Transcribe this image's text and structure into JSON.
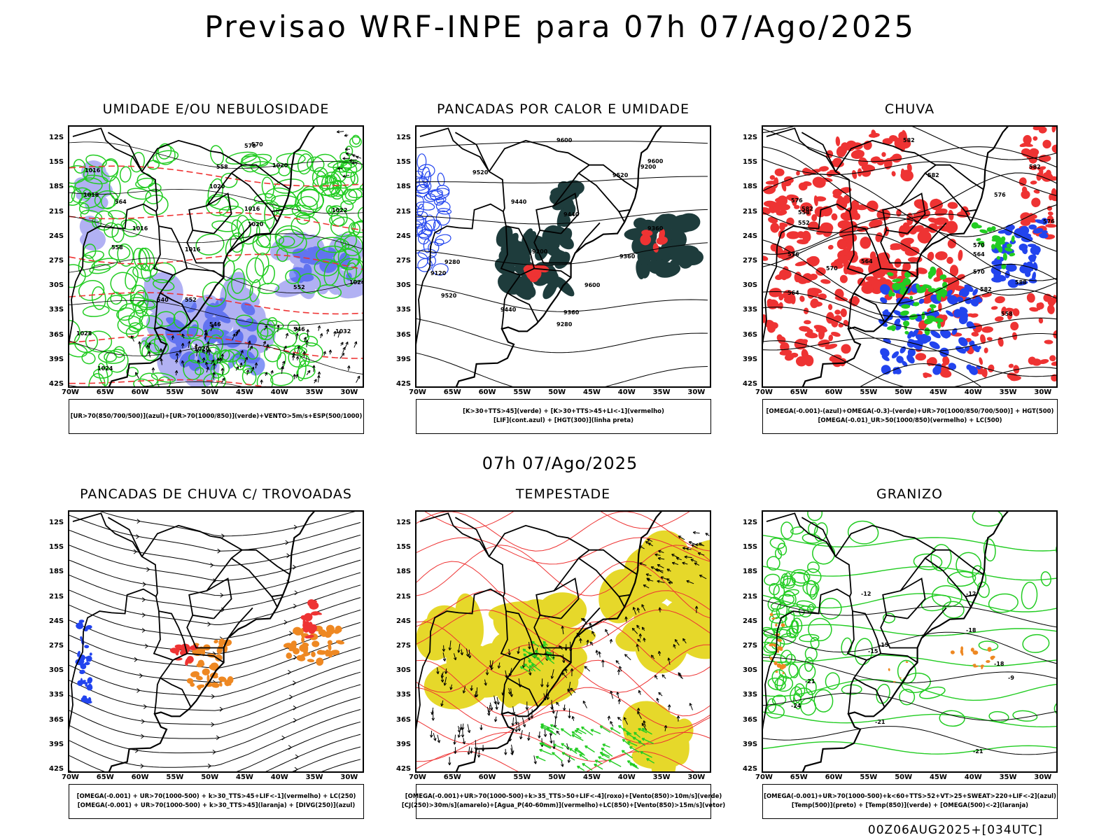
{
  "header": {
    "title": "Previsao WRF-INPE  para 07h 07/Ago/2025"
  },
  "mid_title": "07h 07/Ago/2025",
  "footer": {
    "stamp": "00Z06AUG2025+[034UTC]"
  },
  "axes": {
    "lat_ticks": [
      "12S",
      "15S",
      "18S",
      "21S",
      "24S",
      "27S",
      "30S",
      "33S",
      "36S",
      "39S",
      "42S"
    ],
    "lon_ticks": [
      "70W",
      "65W",
      "60W",
      "55W",
      "50W",
      "45W",
      "40W",
      "35W",
      "30W"
    ]
  },
  "colors": {
    "green": "#22cc22",
    "red": "#ee3333",
    "blue": "#2244ee",
    "lightblue": "#8888ee",
    "darkteal": "#1e3c3c",
    "orange": "#ee8822",
    "yellow": "#e6d82a",
    "black": "#000000"
  },
  "panels": [
    {
      "title": "UMIDADE E/OU NEBULOSIDADE",
      "legend": [
        "[UR>70(850/700/500)](azul)+[UR>70(1000/850)](verde)+VENTO>5m/s+ESP(500/1000)"
      ],
      "contour_labels": [
        "1016",
        "1020",
        "1016",
        "1016",
        "1020",
        "1024",
        "1028",
        "1032",
        "1024",
        "1020",
        "1018",
        "1016",
        "1020",
        "1022",
        "1024",
        "570",
        "564",
        "558",
        "552",
        "546",
        "540",
        "546",
        "552",
        "570",
        "558"
      ]
    },
    {
      "title": "PANCADAS POR CALOR E UMIDADE",
      "legend": [
        "[K>30+TTS>45](verde) + [K>30+TTS>45+LI<-1](vermelho)",
        "[LIF](cont.azul) + [HGT(300)](linha preta)"
      ],
      "contour_labels": [
        "9600",
        "9600",
        "9520",
        "9520",
        "9440",
        "9440",
        "9360",
        "9360",
        "9280",
        "9200",
        "9120",
        "9600",
        "9520",
        "9440",
        "9360",
        "9280",
        "9200"
      ]
    },
    {
      "title": "CHUVA",
      "legend": [
        "[OMEGA(-0.001)-(azul)+OMEGA(-0.3)-(verde)+UR>70(1000/850/700/500)] + HGT(500)",
        "[OMEGA(-0.01)_UR>50(1000/850)(vermelho) + LC(500)"
      ],
      "contour_labels": [
        "582",
        "582",
        "576",
        "576",
        "570",
        "576",
        "582",
        "570",
        "564",
        "564",
        "558",
        "552",
        "558",
        "564",
        "570",
        "576",
        "582",
        "588",
        "582"
      ]
    },
    {
      "title": "PANCADAS DE CHUVA C/ TROVOADAS",
      "legend": [
        "[OMEGA(-0.001) + UR>70(1000-500) + k>30_TTS>45+LIF<-1](vermelho) + LC(250)",
        "[OMEGA(-0.001) + UR>70(1000-500) + k>30_TTS>45](laranja) + [DIVG(250)](azul)"
      ],
      "contour_labels": []
    },
    {
      "title": "TEMPESTADE",
      "legend": [
        "[OMEGA(-0.001)+UR>70(1000-500)+k>35_TTS>50+LIF<-4](roxo)+[Vento(850)>10m/s](verde)",
        "[CJ(250)>30m/s](amarelo)+[Agua_P(40-60mm)](vermelho)+LC(850)+[Vento(850)>15m/s](vetor)"
      ],
      "contour_labels": []
    },
    {
      "title": "GRANIZO",
      "legend": [
        "[OMEGA(-0.001)+UR>70(1000-500)+k<60+TTS>52+VT>25+SWEAT>220+LIF<-2](azul)",
        "[Temp(500)](preto) + [Temp(850)](verde) + [OMEGA(500)<-2](laranja)"
      ],
      "contour_labels": [
        "-21",
        "-24",
        "-21",
        "-21",
        "-18",
        "-15",
        "-18",
        "-12",
        "-12",
        "-15",
        "-9"
      ]
    }
  ]
}
